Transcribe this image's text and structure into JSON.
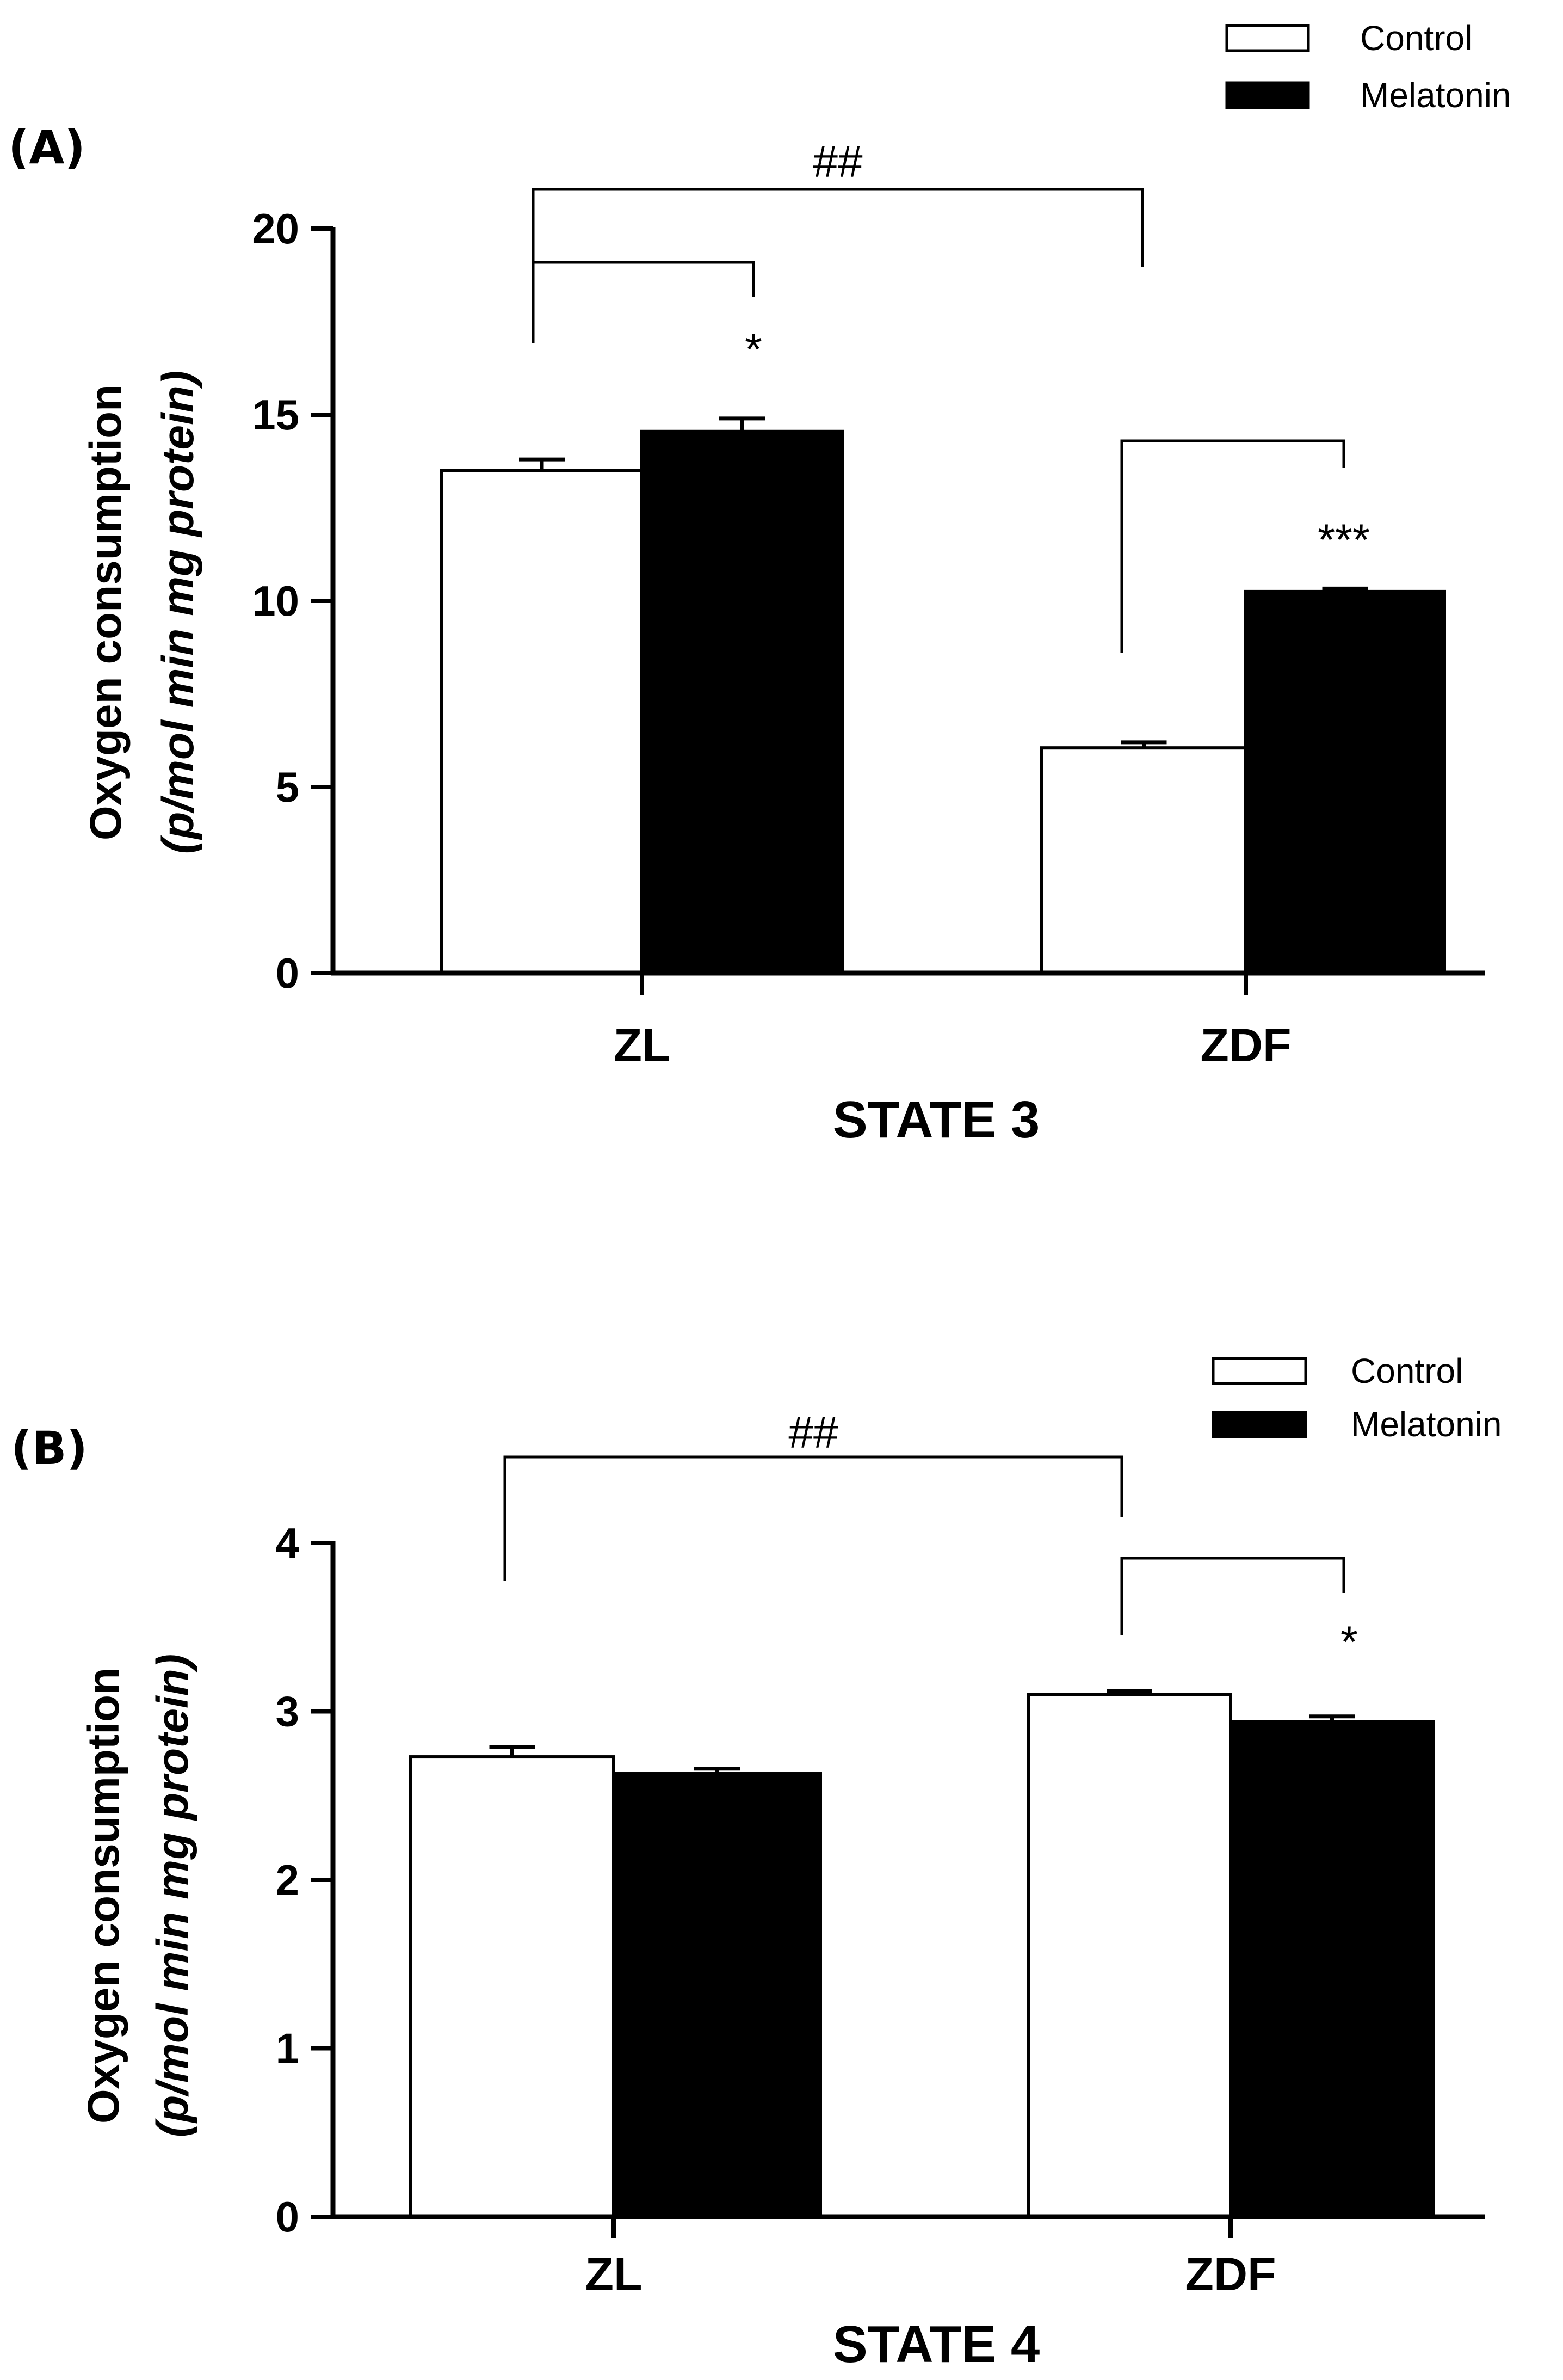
{
  "chart_data": [
    {
      "type": "bar",
      "panel_label": "(A)",
      "categories": [
        "ZL",
        "ZDF"
      ],
      "series": [
        {
          "name": "Control",
          "color": "#ffffff",
          "values": [
            13.5,
            6.05
          ],
          "errors": [
            0.3,
            0.15
          ]
        },
        {
          "name": "Melatonin",
          "color": "#000000",
          "values": [
            14.55,
            10.25
          ],
          "errors": [
            0.35,
            0.08
          ]
        }
      ],
      "xlabel": "STATE 3",
      "ylabel": "Oxygen consumption",
      "ylabel_units": "(p/mol min mg protein)",
      "ylim": [
        0,
        20
      ],
      "yticks": [
        "0",
        "5",
        "10",
        "15",
        "20"
      ],
      "legend": [
        "Control",
        "Melatonin"
      ],
      "significance": [
        {
          "label": "##",
          "between": "ZL Control vs ZDF Control"
        },
        {
          "label": "*",
          "between": "ZL Control vs ZL Melatonin"
        },
        {
          "label": "***",
          "between": "ZDF Control vs ZDF Melatonin"
        }
      ]
    },
    {
      "type": "bar",
      "panel_label": "(B)",
      "categories": [
        "ZL",
        "ZDF"
      ],
      "series": [
        {
          "name": "Control",
          "color": "#ffffff",
          "values": [
            2.73,
            3.1
          ],
          "errors": [
            0.06,
            0.02
          ]
        },
        {
          "name": "Melatonin",
          "color": "#000000",
          "values": [
            2.63,
            2.94
          ],
          "errors": [
            0.03,
            0.03
          ]
        }
      ],
      "xlabel": "STATE 4",
      "ylabel": "Oxygen consumption",
      "ylabel_units": "(p/mol min mg protein)",
      "ylim": [
        0,
        4
      ],
      "yticks": [
        "0",
        "1",
        "2",
        "3",
        "4"
      ],
      "legend": [
        "Control",
        "Melatonin"
      ],
      "significance": [
        {
          "label": "##",
          "between": "ZL Control vs ZDF Control"
        },
        {
          "label": "*",
          "between": "ZDF Control vs ZDF Melatonin"
        }
      ]
    }
  ]
}
